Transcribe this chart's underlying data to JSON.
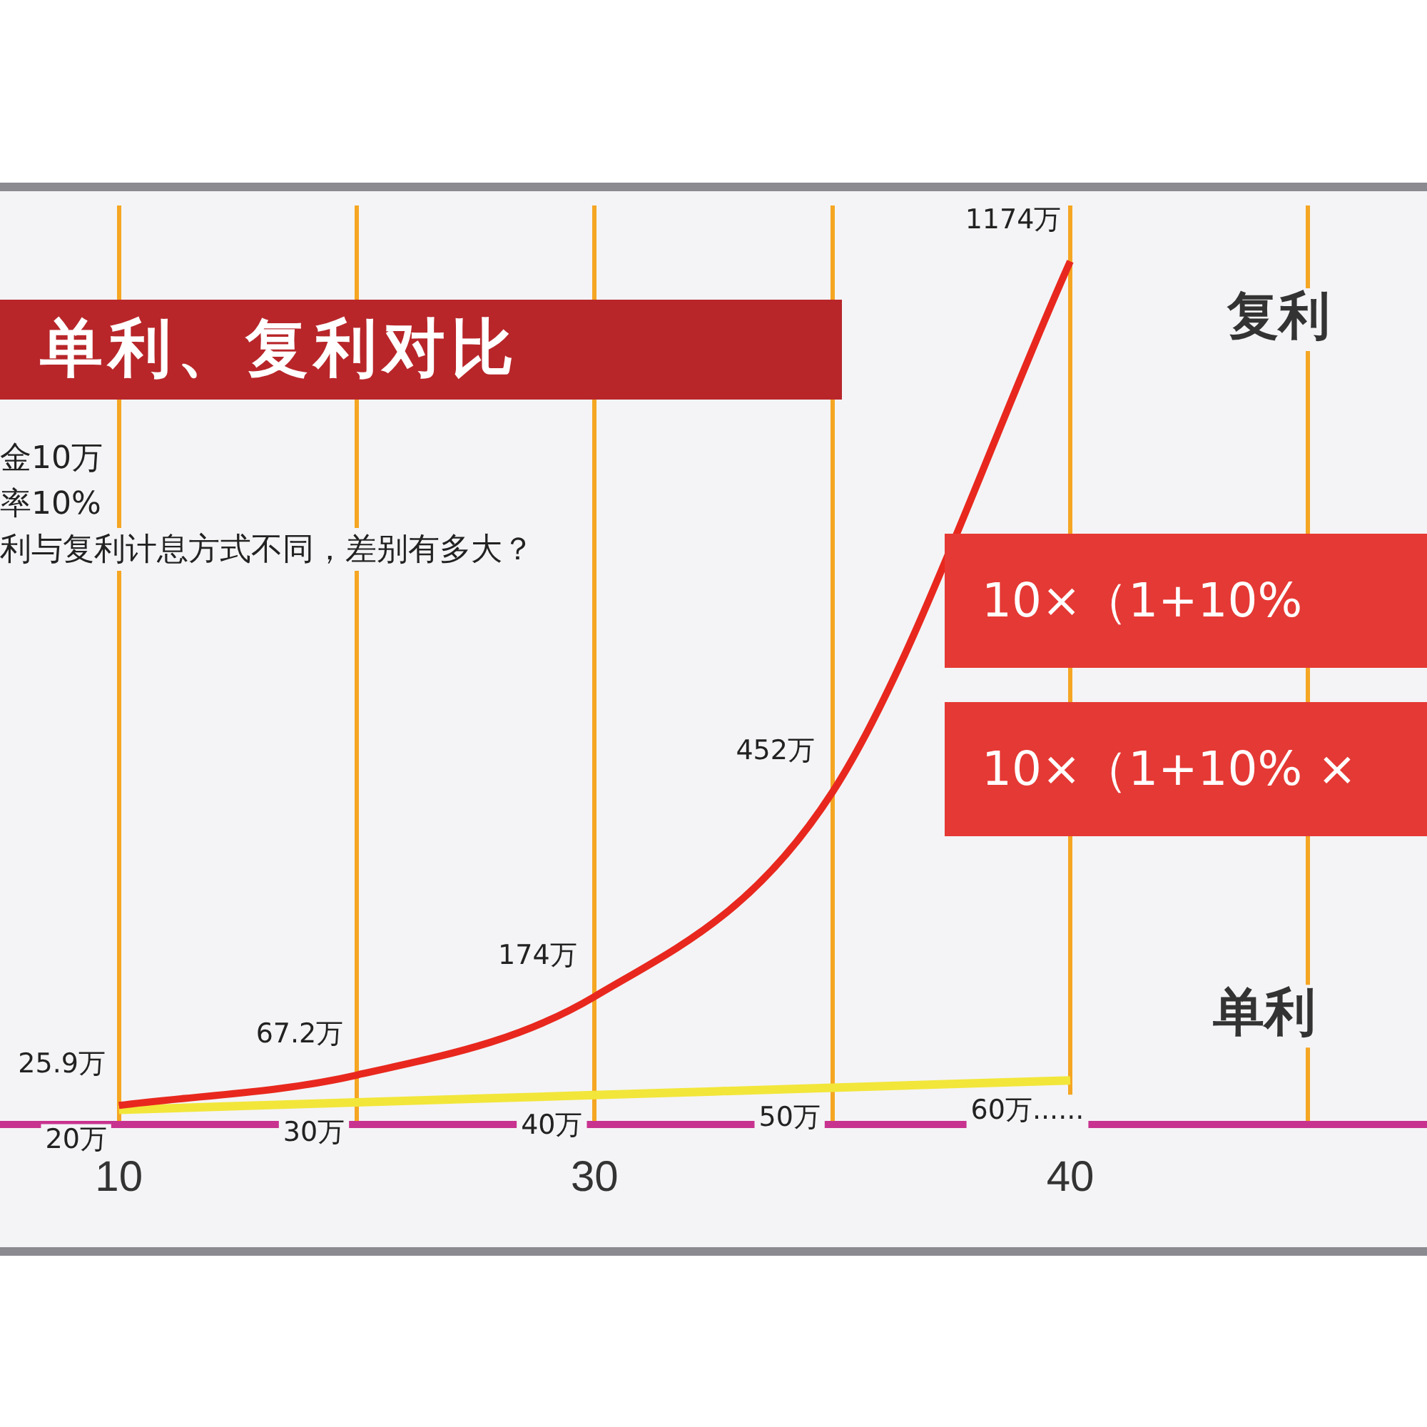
{
  "chart_data": {
    "type": "line",
    "title": "单利、复利对比",
    "annotations": [
      "金10万",
      "率10%",
      "利与复利计息方式不同，差别有多大？",
      "10×（1+10%",
      "10×（1+10% ×"
    ],
    "categories": [
      "10",
      null,
      "30",
      null,
      "40",
      null
    ],
    "series": [
      {
        "name": "复利",
        "color": "#e8281e",
        "values": [
          25.9,
          67.2,
          174,
          452,
          1174,
          null
        ],
        "value_labels": [
          "25.9万",
          "67.2万",
          "174万",
          "452万",
          "1174万",
          null
        ]
      },
      {
        "name": "单利",
        "color": "#f2e63a",
        "values": [
          20,
          30,
          40,
          50,
          60,
          null
        ],
        "value_labels": [
          "20万",
          "30万",
          "40万",
          "50万",
          "60万......",
          null
        ]
      }
    ],
    "ylim": [
      0,
      1250
    ],
    "tick_labels": "x",
    "grid": "x",
    "legend": false,
    "marker": "none",
    "line_style": "solid"
  }
}
